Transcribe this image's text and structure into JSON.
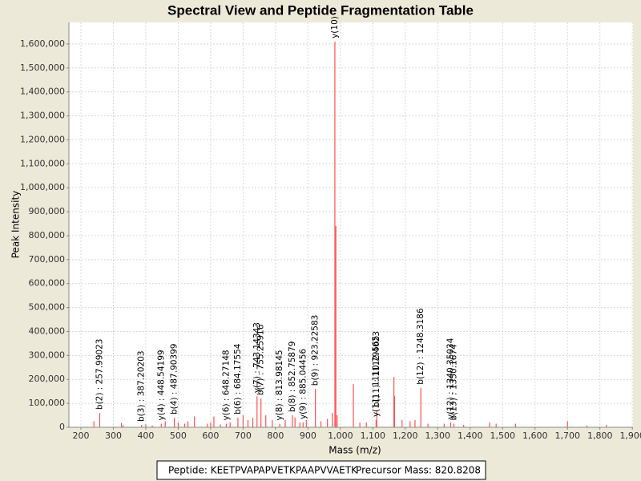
{
  "chart_data": {
    "type": "spectrum",
    "title": "Spectral View and Peptide Fragmentation Table",
    "x_label": "Mass (m/z)",
    "y_label": "Peak Intensity",
    "color": "#ff5050",
    "grid": true,
    "xlim": [
      163,
      1902
    ],
    "xticks": [
      200,
      300,
      400,
      500,
      600,
      700,
      800,
      900,
      {
        "value": 1000,
        "label": "1,000"
      },
      {
        "value": 1100,
        "label": "1,100"
      },
      {
        "value": 1200,
        "label": "1,200"
      },
      {
        "value": 1300,
        "label": "1,300"
      },
      {
        "value": 1400,
        "label": "1,400"
      },
      {
        "value": 1500,
        "label": "1,500"
      },
      {
        "value": 1600,
        "label": "1,600"
      },
      {
        "value": 1700,
        "label": "1,700"
      },
      {
        "value": 1800,
        "label": "1,800"
      },
      {
        "value": 1900,
        "label": "1,900"
      }
    ],
    "ylim": [
      0,
      1690000
    ],
    "yticks": [
      0,
      {
        "value": 100000,
        "label": "100,000"
      },
      {
        "value": 200000,
        "label": "200,000"
      },
      {
        "value": 300000,
        "label": "300,000"
      },
      {
        "value": 400000,
        "label": "400,000"
      },
      {
        "value": 500000,
        "label": "500,000"
      },
      {
        "value": 600000,
        "label": "600,000"
      },
      {
        "value": 700000,
        "label": "700,000"
      },
      {
        "value": 800000,
        "label": "800,000"
      },
      {
        "value": 900000,
        "label": "900,000"
      },
      {
        "value": 1000000,
        "label": "1,000,000"
      },
      {
        "value": 1100000,
        "label": "1,100,000"
      },
      {
        "value": 1200000,
        "label": "1,200,000"
      },
      {
        "value": 1300000,
        "label": "1,300,000"
      },
      {
        "value": 1400000,
        "label": "1,400,000"
      },
      {
        "value": 1500000,
        "label": "1,500,000"
      },
      {
        "value": 1600000,
        "label": "1,600,000"
      }
    ],
    "x": [
      240,
      258,
      325,
      330,
      387,
      400,
      420,
      448,
      460,
      488,
      500,
      520,
      530,
      550,
      590,
      600,
      610,
      630,
      648,
      660,
      684,
      700,
      715,
      730,
      743,
      755,
      770,
      790,
      813,
      830,
      852,
      860,
      875,
      885,
      895,
      923,
      940,
      960,
      975,
      983,
      986,
      990,
      1040,
      1060,
      1080,
      1110,
      1112,
      1165,
      1167,
      1190,
      1215,
      1230,
      1248,
      1270,
      1320,
      1340,
      1350,
      1380,
      1460,
      1480,
      1540,
      1700,
      1760,
      1820
    ],
    "values": [
      25000,
      60000,
      18000,
      8000,
      10000,
      12000,
      8000,
      15000,
      25000,
      40000,
      20000,
      15000,
      25000,
      45000,
      15000,
      20000,
      45000,
      12000,
      15000,
      20000,
      40000,
      50000,
      30000,
      40000,
      130000,
      120000,
      50000,
      30000,
      15000,
      30000,
      50000,
      40000,
      20000,
      20000,
      30000,
      160000,
      25000,
      35000,
      60000,
      1610000,
      840000,
      50000,
      180000,
      20000,
      20000,
      30000,
      70000,
      210000,
      130000,
      30000,
      25000,
      30000,
      165000,
      15000,
      15000,
      20000,
      15000,
      10000,
      20000,
      15000,
      15000,
      25000,
      8000,
      10000
    ],
    "annotations": [
      {
        "text": "b(2) : 257.99023",
        "x": 258,
        "y": 60000
      },
      {
        "text": "b(3) : 387.20203",
        "x": 387,
        "y": 10000
      },
      {
        "text": "y(4) : 448.54199",
        "x": 448,
        "y": 15000
      },
      {
        "text": "b(4) : 487.90399",
        "x": 488,
        "y": 40000
      },
      {
        "text": "y(6) : 648.27148",
        "x": 648,
        "y": 15000
      },
      {
        "text": "b(6) : 684.17554",
        "x": 684,
        "y": 40000
      },
      {
        "text": "y(7) : 743.14343",
        "x": 743,
        "y": 130000
      },
      {
        "text": "b(7) : 755.25916",
        "x": 755,
        "y": 120000
      },
      {
        "text": "y(8) : 813.98145",
        "x": 813,
        "y": 15000
      },
      {
        "text": "b(8) : 852.75879",
        "x": 852,
        "y": 50000
      },
      {
        "text": "y(9) : 885.04456",
        "x": 885,
        "y": 20000
      },
      {
        "text": "b(9) : 923.22583",
        "x": 923,
        "y": 160000
      },
      {
        "text": "y(10)",
        "x": 983,
        "y": 1610000
      },
      {
        "text": "y(11) : 1110.79565",
        "x": 1110,
        "y": 30000
      },
      {
        "text": "b(11) : 1112.4023",
        "x": 1112,
        "y": 70000
      },
      {
        "text": "b(12) : 1248.3186",
        "x": 1248,
        "y": 165000
      },
      {
        "text": "y(12) : 1340.35034",
        "x": 1340,
        "y": 20000
      },
      {
        "text": "b(13) : 1350.1674",
        "x": 1350,
        "y": 15000
      }
    ]
  },
  "footer": {
    "peptide": "Peptide: KEETPVAPAPVETKPAAPVVAETK",
    "precursor": "Precursor Mass: 820.8208"
  }
}
